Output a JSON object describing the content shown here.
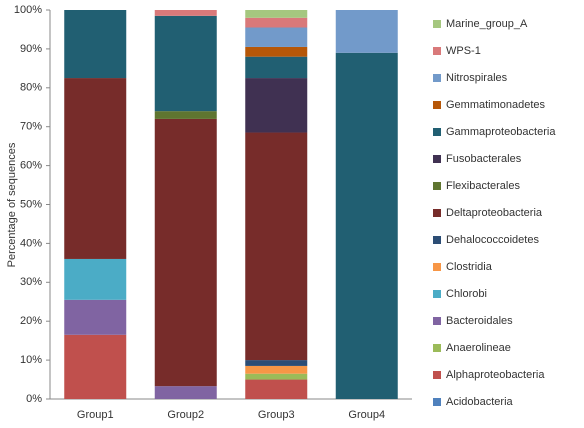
{
  "chart_data": {
    "type": "stacked_bar",
    "y_label": "Percentage of sequences",
    "categories": [
      "Group1",
      "Group2",
      "Group3",
      "Group4"
    ],
    "ylim": [
      0,
      100
    ],
    "yticks": [
      {
        "value": 0,
        "label": "0%"
      },
      {
        "value": 10,
        "label": "10%"
      },
      {
        "value": 20,
        "label": "20%"
      },
      {
        "value": 30,
        "label": "30%"
      },
      {
        "value": 40,
        "label": "40%"
      },
      {
        "value": 50,
        "label": "50%"
      },
      {
        "value": 60,
        "label": "60%"
      },
      {
        "value": 70,
        "label": "70%"
      },
      {
        "value": 80,
        "label": "80%"
      },
      {
        "value": 90,
        "label": "90%"
      },
      {
        "value": 100,
        "label": "100%"
      }
    ],
    "grid": false,
    "legend": "right",
    "series": [
      {
        "name": "Acidobacteria",
        "color": "#4f81bd",
        "values": [
          0,
          0,
          0,
          0
        ]
      },
      {
        "name": "Alphaproteobacteria",
        "color": "#c0504d",
        "values": [
          16.5,
          0,
          5,
          0
        ]
      },
      {
        "name": "Anaerolineae",
        "color": "#9bbb59",
        "values": [
          0,
          0,
          1.5,
          0
        ]
      },
      {
        "name": "Bacteroidales",
        "color": "#8064a2",
        "values": [
          9,
          3.3,
          0,
          0
        ]
      },
      {
        "name": "Chlorobi",
        "color": "#4bacc6",
        "values": [
          10.5,
          0,
          0,
          0
        ]
      },
      {
        "name": "Clostridia",
        "color": "#f79646",
        "values": [
          0,
          0,
          2,
          0
        ]
      },
      {
        "name": "Dehalococcoidetes",
        "color": "#2c4d75",
        "values": [
          0,
          0,
          1.5,
          0
        ]
      },
      {
        "name": "Deltaproteobacteria",
        "color": "#772c2a",
        "values": [
          46.5,
          68.7,
          58.5,
          0
        ]
      },
      {
        "name": "Flexibacterales",
        "color": "#5f7530",
        "values": [
          0,
          2,
          0,
          0
        ]
      },
      {
        "name": "Fusobacterales",
        "color": "#403152",
        "values": [
          0,
          0,
          14,
          0
        ]
      },
      {
        "name": "Gammaproteobacteria",
        "color": "#215f72",
        "values": [
          17.5,
          24.5,
          5.5,
          89
        ]
      },
      {
        "name": "Gemmatimonadetes",
        "color": "#b65708",
        "values": [
          0,
          0,
          2.5,
          0
        ]
      },
      {
        "name": "Nitrospirales",
        "color": "#729aca",
        "values": [
          0,
          0,
          5,
          11
        ]
      },
      {
        "name": "WPS-1",
        "color": "#d9797a",
        "values": [
          0,
          1.5,
          2.5,
          0
        ]
      },
      {
        "name": "Marine_group_A",
        "color": "#a5c77f",
        "values": [
          0,
          0,
          2,
          0
        ]
      }
    ]
  }
}
